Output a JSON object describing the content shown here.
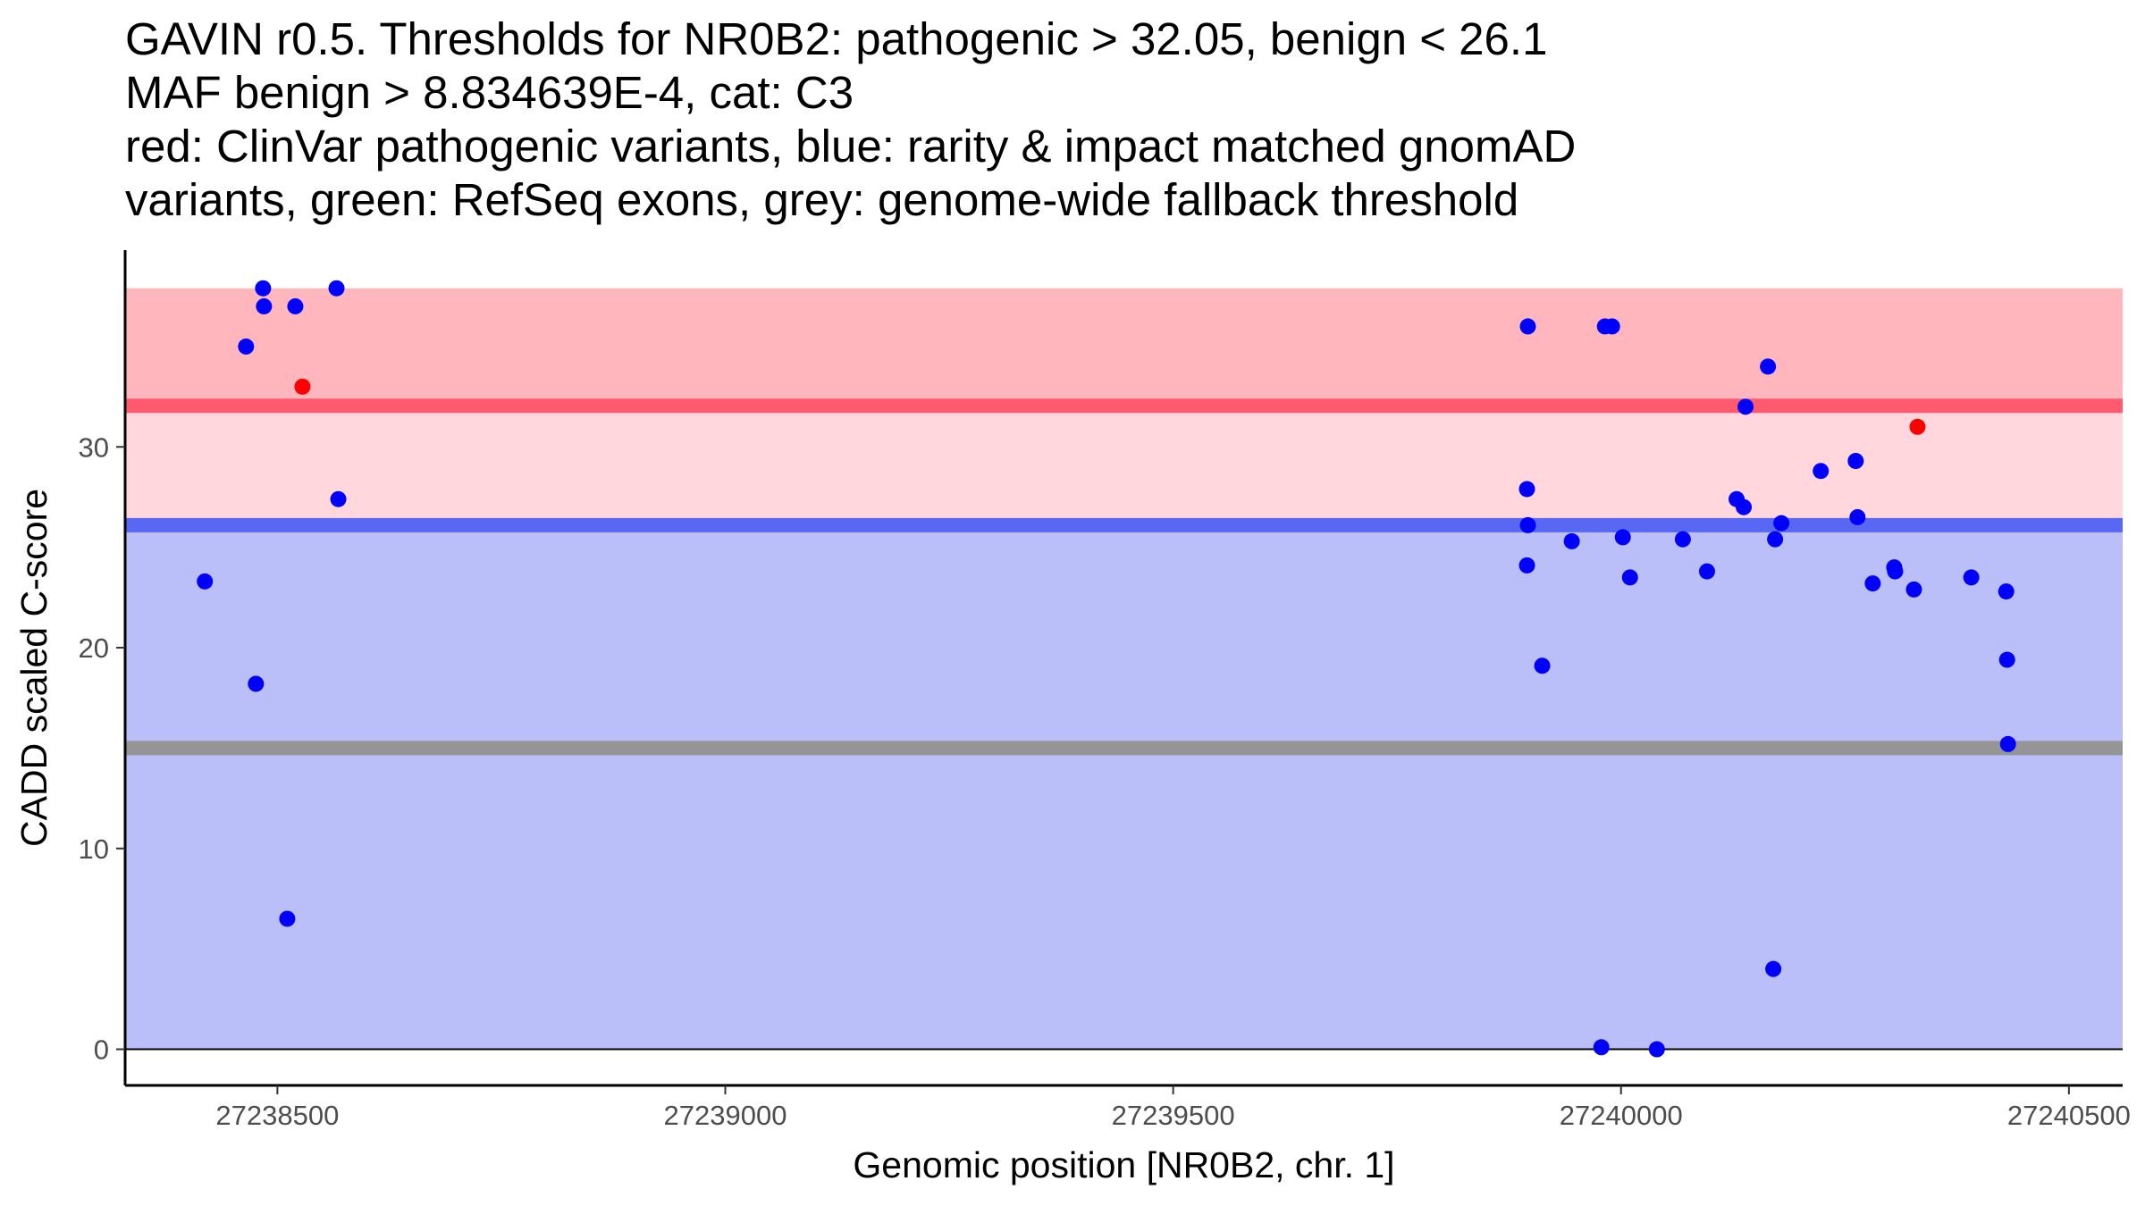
{
  "colors": {
    "pathogenic_band": "#ffb6bd",
    "benign_band": "#babff9",
    "middle_band": "#ffd7dc",
    "pathogenic_line": "#ff5a6e",
    "benign_line": "#5868f2",
    "fallback_line": "#959595",
    "clinvar_point": "#ff0000",
    "gnomad_point": "#0000ff"
  },
  "chart_data": {
    "type": "scatter",
    "title_lines": [
      "GAVIN r0.5. Thresholds for NR0B2: pathogenic > 32.05, benign < 26.1",
      "MAF benign > 8.834639E-4, cat: C3",
      "red: ClinVar pathogenic variants, blue: rarity & impact matched gnomAD",
      "variants, green: RefSeq exons, grey: genome-wide fallback threshold"
    ],
    "xlabel": "Genomic position [NR0B2, chr. 1]",
    "ylabel": "CADD scaled C-score",
    "xlim": [
      27238330,
      27240560
    ],
    "ylim": [
      -1.8,
      39.8
    ],
    "x_ticks": [
      27238500,
      27239000,
      27239500,
      27240000,
      27240500
    ],
    "x_tick_labels": [
      "27238500",
      "27239000",
      "27239500",
      "27240000",
      "27240500"
    ],
    "y_ticks": [
      0,
      10,
      20,
      30
    ],
    "y_tick_labels": [
      "0",
      "10",
      "20",
      "30"
    ],
    "thresholds": {
      "pathogenic": 32.05,
      "benign": 26.1,
      "fallback": 15
    },
    "bands": [
      {
        "name": "benign",
        "from": 0,
        "to": 26.1
      },
      {
        "name": "middle",
        "from": 26.1,
        "to": 32.05
      },
      {
        "name": "pathogenic",
        "from": 32.05,
        "to": 37.9
      }
    ],
    "series": [
      {
        "name": "ClinVar pathogenic",
        "x": [
          27238528,
          27240331
        ],
        "y": [
          33,
          31
        ]
      },
      {
        "name": "gnomAD matched",
        "x": [
          27238419,
          27238465,
          27238476,
          27238484,
          27238485,
          27238511,
          27238520,
          27238566,
          27238568,
          27239895,
          27239895,
          27239896,
          27239896,
          27239912,
          27239945,
          27239978,
          27239982,
          27239990,
          27240002,
          27240010,
          27240040,
          27240069,
          27240096,
          27240129,
          27240137,
          27240139,
          27240164,
          27240170,
          27240172,
          27240179,
          27240223,
          27240262,
          27240264,
          27240281,
          27240305,
          27240306,
          27240327,
          27240391,
          27240430,
          27240431,
          27240432
        ],
        "y": [
          23.3,
          35,
          18.2,
          37.9,
          37,
          6.5,
          37,
          37.9,
          27.4,
          24.1,
          27.9,
          26.1,
          36,
          19.1,
          25.3,
          0.1,
          36,
          36,
          25.5,
          23.5,
          0,
          25.4,
          23.8,
          27.4,
          27,
          32,
          34,
          4,
          25.4,
          26.2,
          28.8,
          29.3,
          26.5,
          23.2,
          24,
          23.8,
          22.9,
          23.5,
          22.8,
          19.4,
          15.2
        ]
      }
    ]
  }
}
